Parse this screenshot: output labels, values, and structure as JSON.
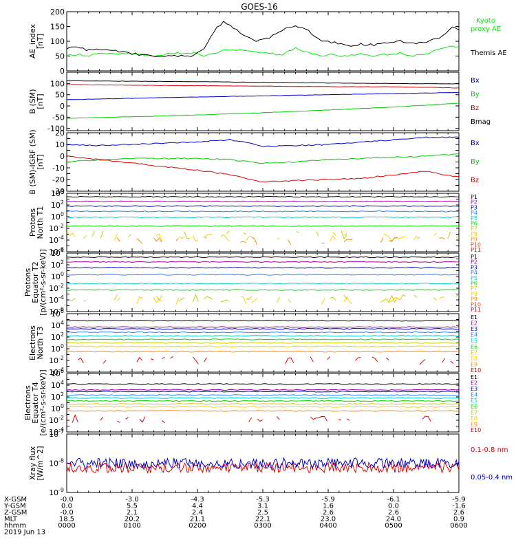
{
  "title": "GOES-16",
  "chart_data": [
    {
      "type": "line",
      "ylabel": "AE_index [nT]",
      "ylim": [
        0,
        200
      ],
      "yticks": [
        0,
        50,
        100,
        150,
        200
      ],
      "ytick_labels": [
        "0",
        "50",
        "100",
        "150",
        "200"
      ],
      "legend_placement": "right",
      "series": [
        {
          "name": "Kyoto proxy AE",
          "color": "#00ee00",
          "x": [
            0,
            1,
            3,
            5,
            7,
            9,
            11,
            13,
            15,
            17,
            19,
            20,
            21,
            22,
            23,
            24,
            25,
            27,
            29,
            31,
            33,
            35,
            37,
            39,
            41,
            43,
            45,
            47,
            49,
            51,
            53,
            55,
            57,
            59,
            60
          ],
          "values": [
            52,
            55,
            52,
            56,
            58,
            60,
            52,
            53,
            55,
            60,
            62,
            58,
            52,
            55,
            62,
            68,
            72,
            70,
            62,
            58,
            55,
            78,
            60,
            52,
            55,
            48,
            58,
            52,
            55,
            60,
            50,
            56,
            72,
            85,
            80
          ]
        },
        {
          "name": "Themis AE",
          "color": "#000000",
          "x": [
            0,
            1,
            3,
            5,
            7,
            9,
            11,
            13,
            15,
            17,
            19,
            20,
            21,
            22,
            23,
            24,
            25,
            27,
            29,
            31,
            33,
            35,
            37,
            39,
            41,
            43,
            45,
            47,
            49,
            51,
            53,
            55,
            57,
            59,
            60
          ],
          "values": [
            78,
            82,
            72,
            70,
            68,
            62,
            56,
            52,
            48,
            50,
            52,
            60,
            78,
            115,
            145,
            165,
            155,
            120,
            100,
            110,
            140,
            155,
            135,
            100,
            95,
            85,
            90,
            88,
            95,
            100,
            92,
            98,
            110,
            150,
            140
          ]
        }
      ]
    },
    {
      "type": "line",
      "ylabel": "B (SM) [nT]",
      "ylim": [
        -110,
        150
      ],
      "yticks": [
        -100,
        -50,
        0,
        50,
        100
      ],
      "ytick_labels": [
        "-100",
        "-50",
        "0",
        "50",
        "100"
      ],
      "legend_placement": "right",
      "series": [
        {
          "name": "Bx",
          "color": "#0000cc",
          "x": [
            0,
            10,
            20,
            30,
            40,
            50,
            60
          ],
          "values": [
            28,
            34,
            40,
            45,
            50,
            55,
            60
          ]
        },
        {
          "name": "By",
          "color": "#00cc00",
          "x": [
            0,
            10,
            20,
            30,
            40,
            50,
            60
          ],
          "values": [
            -55,
            -48,
            -40,
            -30,
            -18,
            -5,
            12
          ]
        },
        {
          "name": "Bz",
          "color": "#dd0000",
          "x": [
            0,
            10,
            20,
            30,
            40,
            50,
            60
          ],
          "values": [
            95,
            92,
            90,
            88,
            86,
            85,
            80
          ]
        },
        {
          "name": "Bmag",
          "color": "#000000",
          "x": [
            0,
            10,
            20,
            30,
            40,
            50,
            60
          ],
          "values": [
            112,
            110,
            108,
            105,
            102,
            100,
            98
          ]
        }
      ]
    },
    {
      "type": "line",
      "ylabel": "B (SM)-IGRF (SM) [nT]",
      "ylim": [
        -30,
        20
      ],
      "yticks": [
        -30,
        -25,
        -20,
        -15,
        -10,
        -5,
        0,
        5,
        10,
        15,
        20
      ],
      "ytick_labels": [
        "-30",
        "",
        "-20",
        "",
        "-10",
        "",
        "0",
        "",
        "10",
        "",
        "20"
      ],
      "legend_placement": "right",
      "series": [
        {
          "name": "Bx",
          "color": "#0000cc",
          "x": [
            0,
            5,
            10,
            15,
            20,
            25,
            28,
            30,
            35,
            40,
            45,
            50,
            55,
            60
          ],
          "values": [
            10,
            9,
            10,
            11,
            12,
            14,
            11,
            8,
            9,
            10,
            12,
            14,
            16,
            16
          ]
        },
        {
          "name": "By",
          "color": "#00cc00",
          "x": [
            0,
            5,
            10,
            15,
            20,
            25,
            28,
            30,
            35,
            40,
            45,
            50,
            55,
            60
          ],
          "values": [
            -5,
            -3,
            -2,
            -2,
            -2,
            -3,
            -5,
            -6,
            -5,
            -3,
            -2,
            -1,
            0,
            2
          ]
        },
        {
          "name": "Bz",
          "color": "#dd0000",
          "x": [
            0,
            5,
            10,
            15,
            20,
            25,
            28,
            30,
            35,
            40,
            45,
            50,
            55,
            60
          ],
          "values": [
            0,
            -3,
            -6,
            -9,
            -12,
            -16,
            -20,
            -22,
            -21,
            -20,
            -19,
            -16,
            -13,
            -18
          ]
        }
      ]
    },
    {
      "type": "line",
      "ylabel": "Protons North T1",
      "ylim_log10": [
        -6,
        4
      ],
      "ytick_exps": [
        "4",
        "2",
        "0",
        "-2",
        "-4",
        "-6"
      ],
      "legend_placement": "right",
      "series": [
        {
          "name": "P1",
          "color": "#000000",
          "log10": 3.4
        },
        {
          "name": "P2",
          "color": "#a000a0",
          "log10": 2.6
        },
        {
          "name": "P3",
          "color": "#0000cc",
          "log10": 1.8
        },
        {
          "name": "P4",
          "color": "#2a7fff",
          "log10": 0.9
        },
        {
          "name": "P5",
          "color": "#00cccc",
          "log10": -0.1
        },
        {
          "name": "P6",
          "color": "#00dd00",
          "log10": -1.6
        },
        {
          "name": "P7",
          "color": "#cccc00",
          "log10": -3.1
        },
        {
          "name": "P8",
          "color": "#ffcc00",
          "log10": -3.5
        },
        {
          "name": "P9",
          "color": "#ff8800",
          "log10": -4.2
        },
        {
          "name": "P10",
          "color": "#ee4400",
          "log10": null
        },
        {
          "name": "P11",
          "color": "#cc0000",
          "log10": null
        }
      ]
    },
    {
      "type": "line",
      "ylabel": "Protons Equator T2 [p/(cm²-s-sr-keV)]",
      "ylim_log10": [
        -6,
        4
      ],
      "ytick_exps": [
        "4",
        "2",
        "0",
        "-2",
        "-4",
        "-6"
      ],
      "legend_placement": "right",
      "series": [
        {
          "name": "P1",
          "color": "#000000",
          "log10": 3.3
        },
        {
          "name": "P2",
          "color": "#a000a0",
          "log10": 2.5
        },
        {
          "name": "P3",
          "color": "#0000cc",
          "log10": 1.5
        },
        {
          "name": "P4",
          "color": "#2a7fff",
          "log10": 0.3
        },
        {
          "name": "P5",
          "color": "#00cccc",
          "log10": -1.2
        },
        {
          "name": "P6",
          "color": "#00dd00",
          "log10": -2.3
        },
        {
          "name": "P7",
          "color": "#cccc00",
          "log10": -3.8
        },
        {
          "name": "P8",
          "color": "#ffcc00",
          "log10": -4.1
        },
        {
          "name": "P9",
          "color": "#ff8800",
          "log10": null
        },
        {
          "name": "P10",
          "color": "#ee4400",
          "log10": null
        },
        {
          "name": "P11",
          "color": "#cc0000",
          "log10": null
        }
      ]
    },
    {
      "type": "line",
      "ylabel": "Electrons North T3",
      "ylim_log10": [
        -4,
        6
      ],
      "ytick_exps": [
        "6",
        "4",
        "2",
        "0",
        "-2",
        "-4"
      ],
      "legend_placement": "right",
      "series": [
        {
          "name": "E1",
          "color": "#000000",
          "log10": 4.8
        },
        {
          "name": "E2",
          "color": "#a000a0",
          "log10": 3.7
        },
        {
          "name": "E3",
          "color": "#0000cc",
          "log10": 3.4
        },
        {
          "name": "E4",
          "color": "#2a7fff",
          "log10": 2.8
        },
        {
          "name": "E5",
          "color": "#00cccc",
          "log10": 2.2
        },
        {
          "name": "E6",
          "color": "#00dd00",
          "log10": 1.6
        },
        {
          "name": "E7",
          "color": "#cccc00",
          "log10": 1.0
        },
        {
          "name": "E8",
          "color": "#ffcc00",
          "log10": 0.4
        },
        {
          "name": "E9",
          "color": "#ff8800",
          "log10": -0.5
        },
        {
          "name": "E10",
          "color": "#dd0000",
          "log10": -2.0
        }
      ]
    },
    {
      "type": "line",
      "ylabel": "Electrons Equator T4 [e/(cm²-s-sr-keV)]",
      "ylim_log10": [
        -4,
        6
      ],
      "ytick_exps": [
        "6",
        "4",
        "2",
        "0",
        "-2",
        "-4"
      ],
      "legend_placement": "right",
      "series": [
        {
          "name": "E1",
          "color": "#000000",
          "log10": 4.2
        },
        {
          "name": "E2",
          "color": "#a000a0",
          "log10": 3.2
        },
        {
          "name": "E3",
          "color": "#0000cc",
          "log10": 2.9
        },
        {
          "name": "E4",
          "color": "#2a7fff",
          "log10": 2.3
        },
        {
          "name": "E5",
          "color": "#00cccc",
          "log10": 1.8
        },
        {
          "name": "E6",
          "color": "#00dd00",
          "log10": 1.3
        },
        {
          "name": "E7",
          "color": "#cccc00",
          "log10": 0.8
        },
        {
          "name": "E8",
          "color": "#ffcc00",
          "log10": 0.3
        },
        {
          "name": "E9",
          "color": "#ff8800",
          "log10": -0.4
        },
        {
          "name": "E10",
          "color": "#dd0000",
          "log10": -1.8
        }
      ]
    },
    {
      "type": "line",
      "ylabel": "Xray flux [W/m^2]",
      "ylim_log10": [
        -9,
        -7
      ],
      "ytick_exps": [
        "-7",
        "-8",
        "-9"
      ],
      "legend_placement": "right",
      "series": [
        {
          "name": "0.1-0.8 nm",
          "color": "#dd0000",
          "log10": -8.15
        },
        {
          "name": "0.05-0.4 nm",
          "color": "#0000cc",
          "log10": -8.0
        }
      ]
    }
  ],
  "xaxis": {
    "range_minutes": [
      0,
      360
    ],
    "tick_minutes": [
      0,
      60,
      120,
      180,
      240,
      300,
      360
    ],
    "rows": [
      {
        "label": "X-GSM",
        "values": [
          "-0.0",
          "-3.0",
          "-4.3",
          "-5.3",
          "-5.9",
          "-6.1",
          "-5.9"
        ]
      },
      {
        "label": "Y-GSM",
        "values": [
          "0.0",
          "5.5",
          "4.4",
          "3.1",
          "1.6",
          "0.0",
          "-1.6"
        ]
      },
      {
        "label": "Z-GSM",
        "values": [
          "-0.0",
          "2.1",
          "2.4",
          "2.5",
          "2.6",
          "2.6",
          "2.6"
        ]
      },
      {
        "label": "MLT",
        "values": [
          "18.5",
          "20.2",
          "21.1",
          "22.1",
          "23.0",
          "24.0",
          "0.9"
        ]
      },
      {
        "label": "hhmm",
        "values": [
          "0000",
          "0100",
          "0200",
          "0300",
          "0400",
          "0500",
          "0600"
        ]
      }
    ],
    "date": "2019 Jun 13"
  }
}
